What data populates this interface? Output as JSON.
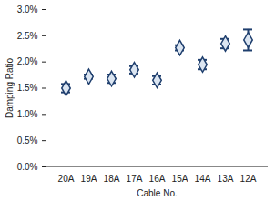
{
  "chart_data": {
    "type": "scatter",
    "x_label": "Cable No.",
    "y_label": "Damping Ratio",
    "categories": [
      "20A",
      "19A",
      "18A",
      "17A",
      "16A",
      "15A",
      "14A",
      "13A",
      "12A"
    ],
    "values": [
      1.5,
      1.72,
      1.68,
      1.85,
      1.65,
      2.27,
      1.95,
      2.35,
      2.42
    ],
    "errors": [
      0.08,
      0.04,
      0.08,
      0.07,
      0.08,
      0.05,
      0.09,
      0.09,
      0.2
    ],
    "ylim": [
      0,
      3
    ],
    "yticks": [
      {
        "value": 0,
        "label": "0.0%"
      },
      {
        "value": 0.5,
        "label": "0.5%"
      },
      {
        "value": 1,
        "label": "1.0%"
      },
      {
        "value": 1.5,
        "label": "1.5%"
      },
      {
        "value": 2,
        "label": "2.0%"
      },
      {
        "value": 2.5,
        "label": "2.5%"
      },
      {
        "value": 3,
        "label": "3.0%"
      }
    ],
    "color": "#1f3f6e",
    "marker": "diamond",
    "grid": false
  }
}
